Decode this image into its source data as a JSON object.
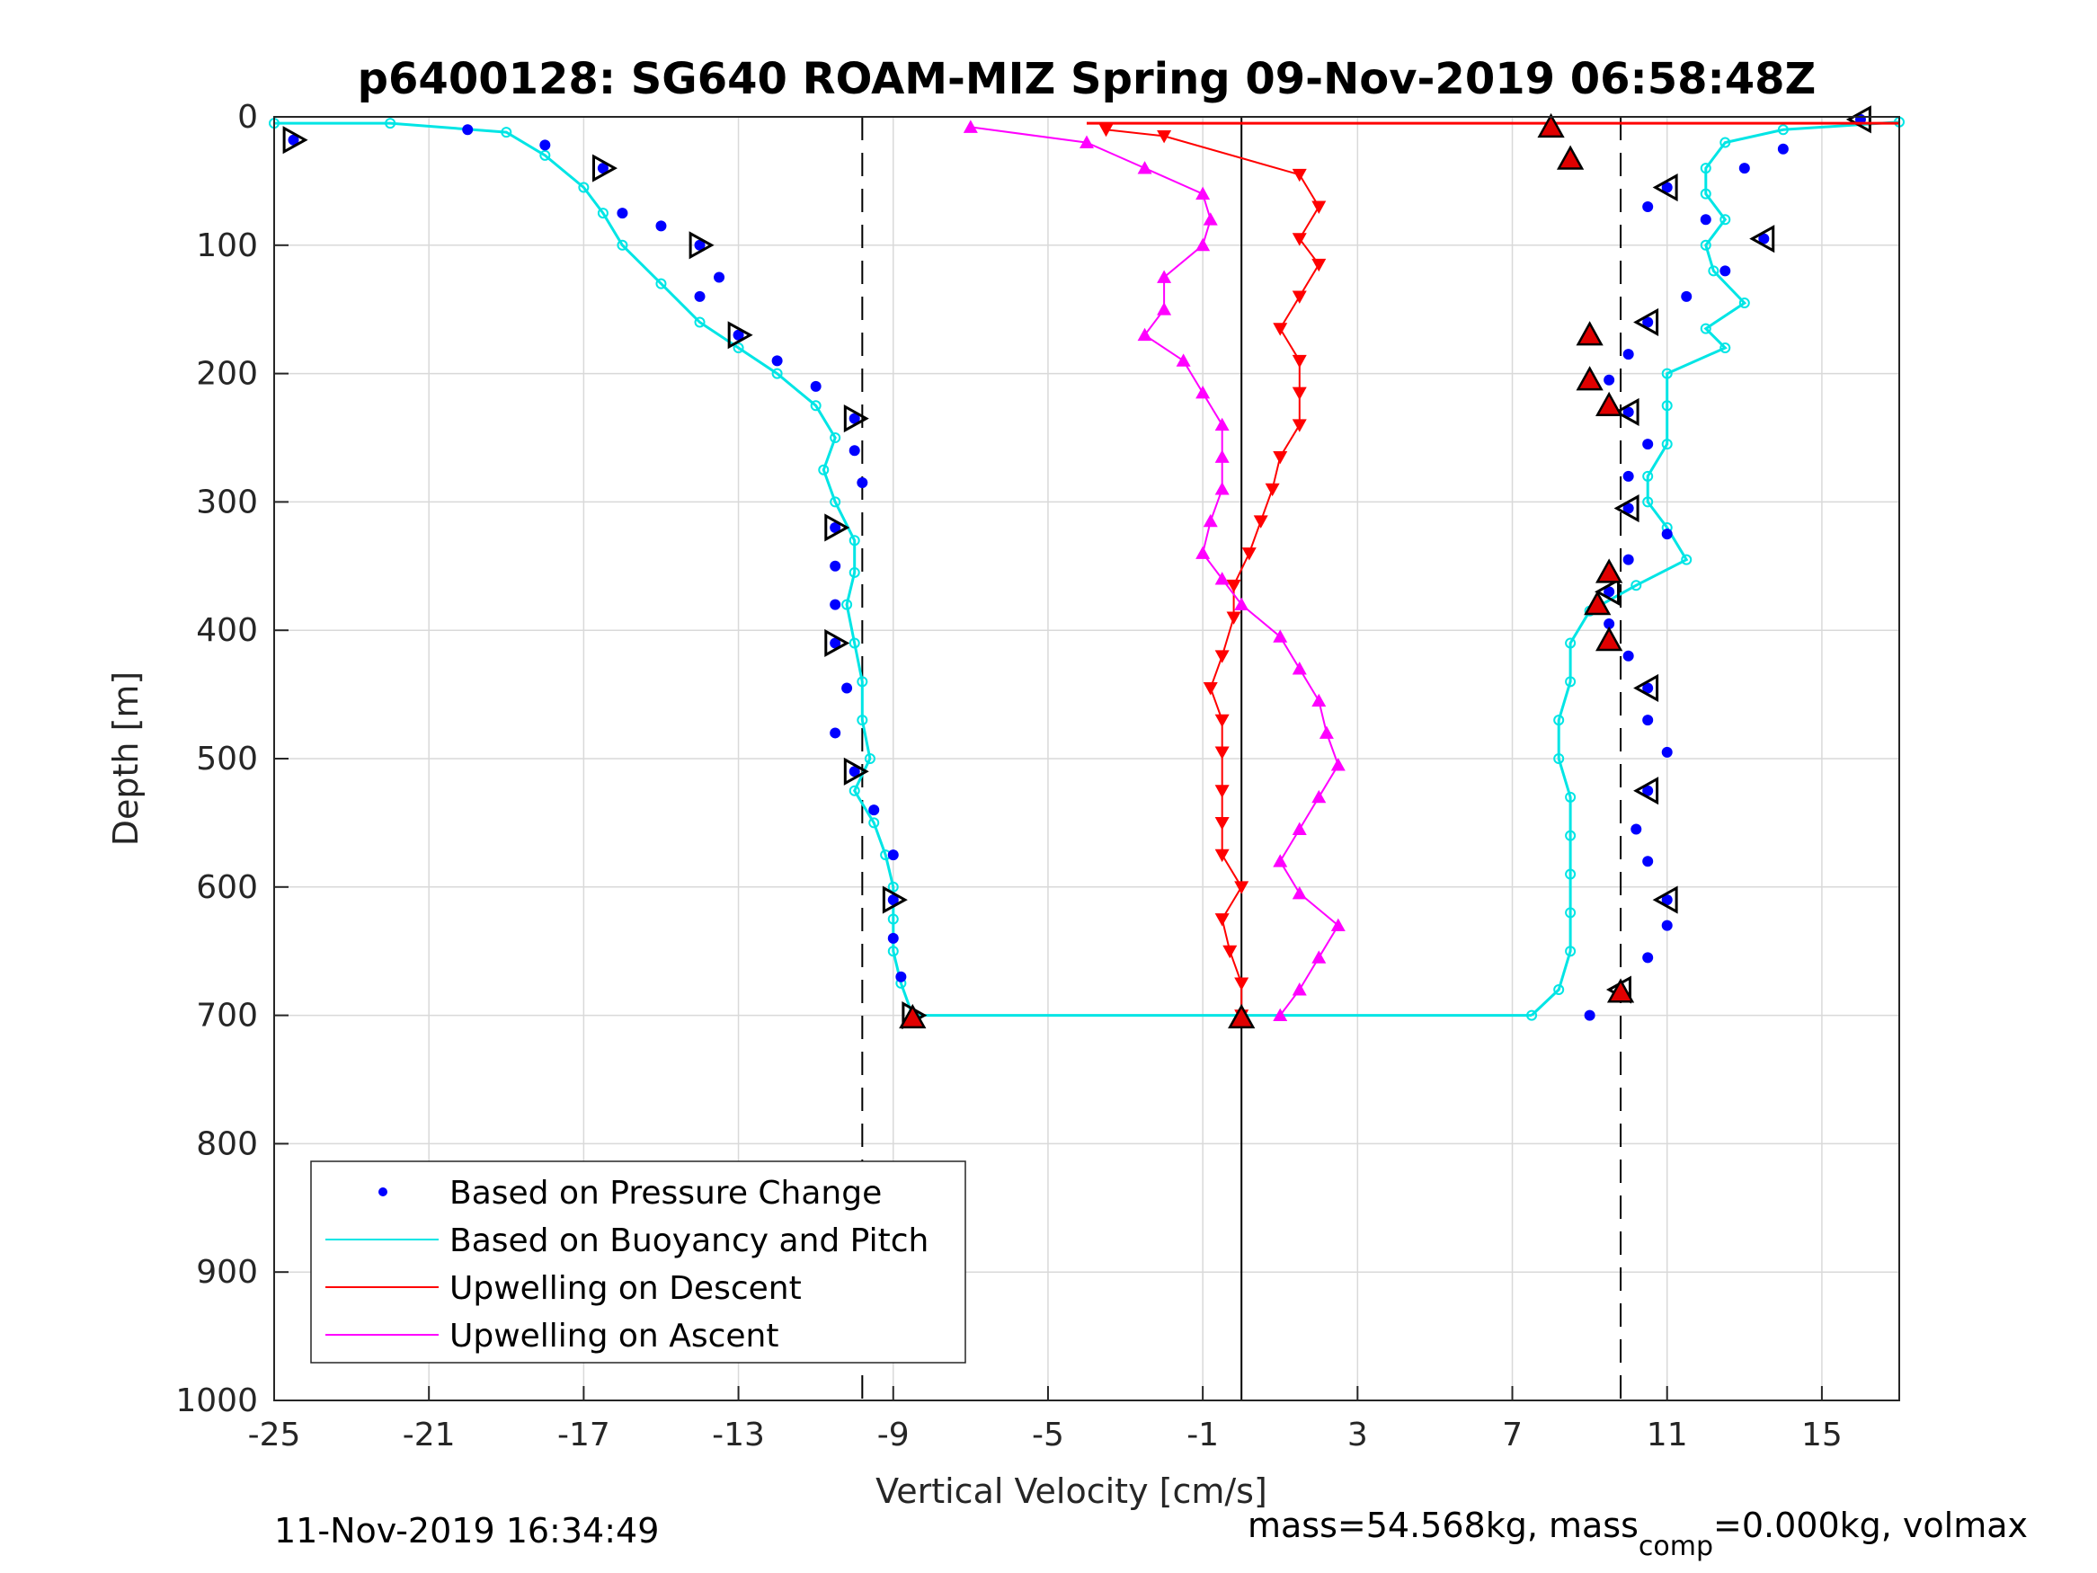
{
  "chart_data": {
    "type": "scatter",
    "title": "p6400128: SG640 ROAM-MIZ Spring 09-Nov-2019 06:58:48Z",
    "xlabel": "Vertical Velocity [cm/s]",
    "ylabel": "Depth [m]",
    "xlim": [
      -25,
      17
    ],
    "ylim": [
      1000,
      0
    ],
    "x_ticks": [
      "-25",
      "-21",
      "-17",
      "-13",
      "-9",
      "-5",
      "-1",
      "3",
      "7",
      "11",
      "15"
    ],
    "x_tick_values": [
      -25,
      -21,
      -17,
      -13,
      -9,
      -5,
      -1,
      3,
      7,
      11,
      15
    ],
    "y_ticks": [
      "0",
      "100",
      "200",
      "300",
      "400",
      "500",
      "600",
      "700",
      "800",
      "900",
      "1000"
    ],
    "y_tick_values": [
      0,
      100,
      200,
      300,
      400,
      500,
      600,
      700,
      800,
      900,
      1000
    ],
    "grid": true,
    "legend_position": "bottom-left",
    "reference_lines": [
      {
        "style": "dashed",
        "x": -9.8
      },
      {
        "style": "solid",
        "x": 0
      },
      {
        "style": "dashed",
        "x": 9.8
      }
    ],
    "series": [
      {
        "name": "Based on Pressure Change",
        "color": "#0000ff",
        "style": "dots",
        "descent": [
          [
            -24.5,
            18
          ],
          [
            -20,
            10
          ],
          [
            -18,
            22
          ],
          [
            -16.5,
            40
          ],
          [
            -16,
            75
          ],
          [
            -15,
            85
          ],
          [
            -14,
            100
          ],
          [
            -13.5,
            125
          ],
          [
            -14,
            140
          ],
          [
            -13,
            170
          ],
          [
            -12,
            190
          ],
          [
            -11,
            210
          ],
          [
            -10,
            235
          ],
          [
            -10,
            260
          ],
          [
            -9.8,
            285
          ],
          [
            -10.5,
            320
          ],
          [
            -10.5,
            350
          ],
          [
            -10.5,
            380
          ],
          [
            -10.5,
            410
          ],
          [
            -10.2,
            445
          ],
          [
            -10.5,
            480
          ],
          [
            -10,
            510
          ],
          [
            -9.5,
            540
          ],
          [
            -9,
            575
          ],
          [
            -9,
            610
          ],
          [
            -9,
            640
          ],
          [
            -8.8,
            670
          ],
          [
            -8.5,
            700
          ]
        ],
        "ascent": [
          [
            16,
            2
          ],
          [
            14,
            25
          ],
          [
            13,
            40
          ],
          [
            11,
            55
          ],
          [
            10.5,
            70
          ],
          [
            12,
            80
          ],
          [
            13.5,
            95
          ],
          [
            12.5,
            120
          ],
          [
            11.5,
            140
          ],
          [
            10.5,
            160
          ],
          [
            10,
            185
          ],
          [
            9.5,
            205
          ],
          [
            10,
            230
          ],
          [
            10.5,
            255
          ],
          [
            10,
            280
          ],
          [
            10,
            305
          ],
          [
            11,
            325
          ],
          [
            10,
            345
          ],
          [
            9.5,
            370
          ],
          [
            9.5,
            395
          ],
          [
            10,
            420
          ],
          [
            10.5,
            445
          ],
          [
            10.5,
            470
          ],
          [
            11,
            495
          ],
          [
            10.5,
            525
          ],
          [
            10.2,
            555
          ],
          [
            10.5,
            580
          ],
          [
            11,
            610
          ],
          [
            11,
            630
          ],
          [
            10.5,
            655
          ],
          [
            9.8,
            680
          ],
          [
            9,
            700
          ]
        ]
      },
      {
        "name": "Based on Buoyancy and Pitch",
        "color": "#00e5e5",
        "style": "line",
        "descent": [
          [
            -25,
            5
          ],
          [
            -22,
            5
          ],
          [
            -19,
            12
          ],
          [
            -18,
            30
          ],
          [
            -17,
            55
          ],
          [
            -16.5,
            75
          ],
          [
            -16,
            100
          ],
          [
            -15,
            130
          ],
          [
            -14,
            160
          ],
          [
            -13,
            180
          ],
          [
            -12,
            200
          ],
          [
            -11,
            225
          ],
          [
            -10.5,
            250
          ],
          [
            -10.8,
            275
          ],
          [
            -10.5,
            300
          ],
          [
            -10,
            330
          ],
          [
            -10,
            355
          ],
          [
            -10.2,
            380
          ],
          [
            -10,
            410
          ],
          [
            -9.8,
            440
          ],
          [
            -9.8,
            470
          ],
          [
            -9.6,
            500
          ],
          [
            -10,
            525
          ],
          [
            -9.5,
            550
          ],
          [
            -9.2,
            575
          ],
          [
            -9,
            600
          ],
          [
            -9,
            625
          ],
          [
            -9,
            650
          ],
          [
            -8.8,
            675
          ],
          [
            -8.5,
            700
          ]
        ],
        "ascent": [
          [
            17,
            4
          ],
          [
            14,
            10
          ],
          [
            12.5,
            20
          ],
          [
            12,
            40
          ],
          [
            12,
            60
          ],
          [
            12.5,
            80
          ],
          [
            12,
            100
          ],
          [
            12.2,
            120
          ],
          [
            13,
            145
          ],
          [
            12,
            165
          ],
          [
            12.5,
            180
          ],
          [
            11,
            200
          ],
          [
            11,
            225
          ],
          [
            11,
            255
          ],
          [
            10.5,
            280
          ],
          [
            10.5,
            300
          ],
          [
            11,
            320
          ],
          [
            11.5,
            345
          ],
          [
            10.2,
            365
          ],
          [
            9,
            385
          ],
          [
            8.5,
            410
          ],
          [
            8.5,
            440
          ],
          [
            8.2,
            470
          ],
          [
            8.2,
            500
          ],
          [
            8.5,
            530
          ],
          [
            8.5,
            560
          ],
          [
            8.5,
            590
          ],
          [
            8.5,
            620
          ],
          [
            8.5,
            650
          ],
          [
            8.2,
            680
          ],
          [
            7.5,
            700
          ]
        ]
      },
      {
        "name": "Upwelling on Descent",
        "color": "#ff0000",
        "style": "line-triangle-down",
        "points": [
          [
            -3.5,
            10
          ],
          [
            -2,
            15
          ],
          [
            1.5,
            45
          ],
          [
            2,
            70
          ],
          [
            1.5,
            95
          ],
          [
            2,
            115
          ],
          [
            1.5,
            140
          ],
          [
            1,
            165
          ],
          [
            1.5,
            190
          ],
          [
            1.5,
            215
          ],
          [
            1.5,
            240
          ],
          [
            1,
            265
          ],
          [
            0.8,
            290
          ],
          [
            0.5,
            315
          ],
          [
            0.2,
            340
          ],
          [
            -0.2,
            365
          ],
          [
            -0.2,
            390
          ],
          [
            -0.5,
            420
          ],
          [
            -0.8,
            445
          ],
          [
            -0.5,
            470
          ],
          [
            -0.5,
            495
          ],
          [
            -0.5,
            525
          ],
          [
            -0.5,
            550
          ],
          [
            -0.5,
            575
          ],
          [
            0,
            600
          ],
          [
            -0.5,
            625
          ],
          [
            -0.3,
            650
          ],
          [
            0,
            675
          ],
          [
            0,
            700
          ]
        ]
      },
      {
        "name": "Upwelling on Ascent",
        "color": "#ff00ff",
        "style": "line-triangle-up",
        "points": [
          [
            -7,
            8
          ],
          [
            -4,
            20
          ],
          [
            -2.5,
            40
          ],
          [
            -1,
            60
          ],
          [
            -0.8,
            80
          ],
          [
            -1,
            100
          ],
          [
            -2,
            125
          ],
          [
            -2,
            150
          ],
          [
            -2.5,
            170
          ],
          [
            -1.5,
            190
          ],
          [
            -1,
            215
          ],
          [
            -0.5,
            240
          ],
          [
            -0.5,
            265
          ],
          [
            -0.5,
            290
          ],
          [
            -0.8,
            315
          ],
          [
            -1,
            340
          ],
          [
            -0.5,
            360
          ],
          [
            0,
            380
          ],
          [
            1,
            405
          ],
          [
            1.5,
            430
          ],
          [
            2,
            455
          ],
          [
            2.2,
            480
          ],
          [
            2.5,
            505
          ],
          [
            2,
            530
          ],
          [
            1.5,
            555
          ],
          [
            1,
            580
          ],
          [
            1.5,
            605
          ],
          [
            2.5,
            630
          ],
          [
            2,
            655
          ],
          [
            1.5,
            680
          ],
          [
            1,
            700
          ]
        ]
      }
    ],
    "legend": [
      "Based on Pressure Change",
      "Based on Buoyancy and Pitch",
      "Upwelling on Descent",
      "Upwelling on Ascent"
    ],
    "footer_left": "11-Nov-2019 16:34:49",
    "footer_right_prefix": "mass=54.568kg, mass",
    "footer_right_subscript": "comp",
    "footer_right_suffix": "=0.000kg, volmax"
  }
}
